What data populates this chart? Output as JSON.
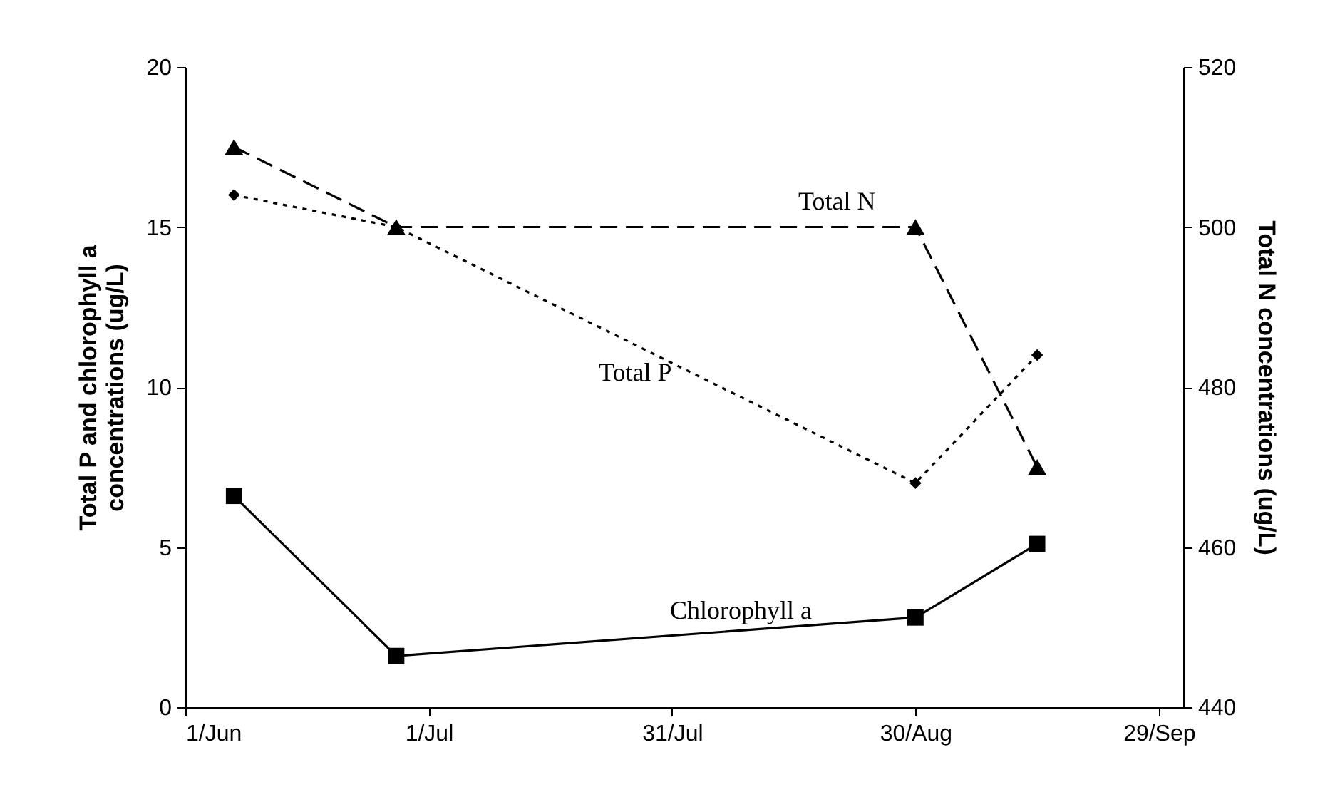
{
  "chart_data": {
    "type": "line",
    "x": [
      "--06-07",
      "--06-27",
      "--08-30",
      "--09-14"
    ],
    "series": [
      {
        "name": "Chlorophyll a",
        "color": "#000000",
        "values": [
          6.6,
          1.6,
          2.8,
          5.1
        ],
        "marker": "square",
        "line_style": "solid"
      },
      {
        "name": "Total P",
        "color": "#000000",
        "values": [
          16,
          15,
          7,
          11
        ],
        "marker": "diamond",
        "line_style": "dotted"
      },
      {
        "name": "Total N",
        "color": "#000000",
        "values": [
          510,
          500,
          500,
          470
        ],
        "marker": "triangle",
        "line_style": "dashed",
        "axis": "y2"
      }
    ],
    "ylabel": "Total P and chlorophyll a concentrations (ug/L)",
    "y2label": "Total N concentrations (ug/L)",
    "xlim": [
      "--06-01",
      "--10-02"
    ],
    "xticks": [
      {
        "value": "--06-01",
        "label": "1/Jun"
      },
      {
        "value": "--07-01",
        "label": "1/Jul"
      },
      {
        "value": "--07-31",
        "label": "31/Jul"
      },
      {
        "value": "--08-30",
        "label": "30/Aug"
      },
      {
        "value": "--09-29",
        "label": "29/Sep"
      }
    ],
    "ylim": [
      0,
      20
    ],
    "yticks": [
      0,
      5,
      10,
      15,
      20
    ],
    "y2lim": [
      440,
      520
    ],
    "y2ticks": [
      440,
      460,
      480,
      500,
      520
    ],
    "grid": false
  }
}
